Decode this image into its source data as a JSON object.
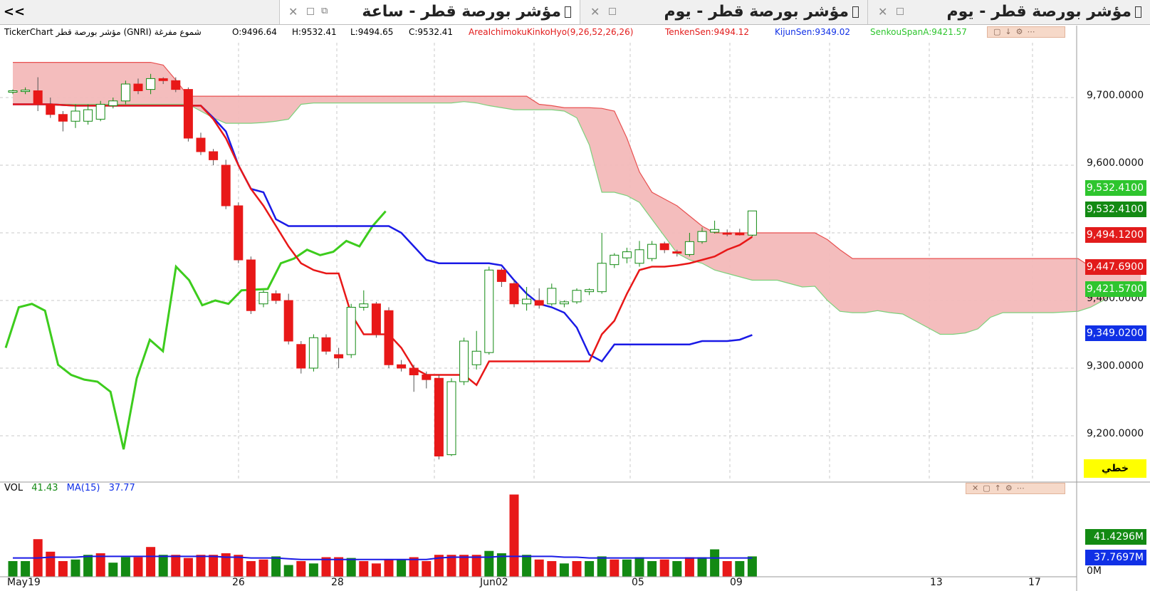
{
  "tabs": [
    {
      "title": "مؤشر بورصة قطر - ساعة",
      "active": true
    },
    {
      "title": "مؤشر بورصة قطر - يوم",
      "active": false
    },
    {
      "title": "مؤشر بورصة قطر - يوم",
      "active": false
    }
  ],
  "nav_label": "<<",
  "info": {
    "symbol": "TickerChart مؤشر بورصة قطر (GNRI)  شموع مفرغة",
    "open": "O:9496.64",
    "high": "H:9532.41",
    "low": "L:9494.65",
    "close": "C:9532.41",
    "indicator": "AreaIchimokuKinkoHyo(9,26,52,26,26)",
    "tenkan": "TenkenSen:9494.12",
    "kijun": "KijunSen:9349.02",
    "senkou": "SenkouSpanA:9421.57"
  },
  "price_axis": [
    "9,700.0000",
    "9,600.0000",
    "9,400.0000",
    "9,300.0000",
    "9,200.0000"
  ],
  "price_tags": [
    {
      "text": "9,532.4100",
      "color": "#2ec52e"
    },
    {
      "text": "9,532.4100",
      "color": "#138a13"
    },
    {
      "text": "9,494.1200",
      "color": "#e21b1b"
    },
    {
      "text": "9,447.6900",
      "color": "#e21b1b"
    },
    {
      "text": "9,421.5700",
      "color": "#2ec52e"
    },
    {
      "text": "9,349.0200",
      "color": "#1030e6"
    }
  ],
  "scale_button": "خطي",
  "date_labels": [
    "May19",
    "26",
    "28",
    "Jun02",
    "05",
    "09",
    "13",
    "17"
  ],
  "volume": {
    "label": "VOL",
    "value": "41.43",
    "ma_label": "MA(15)",
    "ma_value": "37.77",
    "tags": [
      {
        "text": "41.4296M",
        "color": "#138a13"
      },
      {
        "text": "37.7697M",
        "color": "#1030e6"
      }
    ],
    "zero_label": "0M"
  },
  "chart_data": {
    "type": "candlestick",
    "price_ylim": [
      9160,
      9760
    ],
    "candles": [
      {
        "o": 9708,
        "h": 9712,
        "l": 9705,
        "c": 9710
      },
      {
        "o": 9710,
        "h": 9715,
        "l": 9705,
        "c": 9711
      },
      {
        "o": 9710,
        "h": 9730,
        "l": 9680,
        "c": 9690
      },
      {
        "o": 9690,
        "h": 9700,
        "l": 9670,
        "c": 9675
      },
      {
        "o": 9675,
        "h": 9680,
        "l": 9650,
        "c": 9665
      },
      {
        "o": 9665,
        "h": 9690,
        "l": 9655,
        "c": 9680
      },
      {
        "o": 9665,
        "h": 9690,
        "l": 9660,
        "c": 9682
      },
      {
        "o": 9668,
        "h": 9695,
        "l": 9665,
        "c": 9690
      },
      {
        "o": 9688,
        "h": 9700,
        "l": 9684,
        "c": 9695
      },
      {
        "o": 9695,
        "h": 9725,
        "l": 9690,
        "c": 9720
      },
      {
        "o": 9720,
        "h": 9728,
        "l": 9705,
        "c": 9710
      },
      {
        "o": 9712,
        "h": 9735,
        "l": 9705,
        "c": 9728
      },
      {
        "o": 9728,
        "h": 9730,
        "l": 9720,
        "c": 9725
      },
      {
        "o": 9725,
        "h": 9730,
        "l": 9708,
        "c": 9712
      },
      {
        "o": 9712,
        "h": 9715,
        "l": 9635,
        "c": 9640
      },
      {
        "o": 9640,
        "h": 9648,
        "l": 9615,
        "c": 9620
      },
      {
        "o": 9620,
        "h": 9624,
        "l": 9600,
        "c": 9608
      },
      {
        "o": 9600,
        "h": 9608,
        "l": 9535,
        "c": 9540
      },
      {
        "o": 9540,
        "h": 9545,
        "l": 9455,
        "c": 9460
      },
      {
        "o": 9460,
        "h": 9465,
        "l": 9380,
        "c": 9385
      },
      {
        "o": 9395,
        "h": 9415,
        "l": 9390,
        "c": 9412
      },
      {
        "o": 9410,
        "h": 9415,
        "l": 9395,
        "c": 9400
      },
      {
        "o": 9400,
        "h": 9410,
        "l": 9335,
        "c": 9340
      },
      {
        "o": 9335,
        "h": 9340,
        "l": 9292,
        "c": 9300
      },
      {
        "o": 9300,
        "h": 9350,
        "l": 9295,
        "c": 9345
      },
      {
        "o": 9345,
        "h": 9350,
        "l": 9320,
        "c": 9325
      },
      {
        "o": 9320,
        "h": 9330,
        "l": 9300,
        "c": 9315
      },
      {
        "o": 9320,
        "h": 9395,
        "l": 9315,
        "c": 9390
      },
      {
        "o": 9390,
        "h": 9415,
        "l": 9385,
        "c": 9395
      },
      {
        "o": 9395,
        "h": 9398,
        "l": 9345,
        "c": 9350
      },
      {
        "o": 9385,
        "h": 9390,
        "l": 9300,
        "c": 9305
      },
      {
        "o": 9305,
        "h": 9312,
        "l": 9295,
        "c": 9300
      },
      {
        "o": 9300,
        "h": 9305,
        "l": 9265,
        "c": 9290
      },
      {
        "o": 9290,
        "h": 9295,
        "l": 9270,
        "c": 9283
      },
      {
        "o": 9285,
        "h": 9290,
        "l": 9165,
        "c": 9170
      },
      {
        "o": 9172,
        "h": 9285,
        "l": 9170,
        "c": 9280
      },
      {
        "o": 9280,
        "h": 9345,
        "l": 9275,
        "c": 9340
      },
      {
        "o": 9305,
        "h": 9355,
        "l": 9298,
        "c": 9325
      },
      {
        "o": 9323,
        "h": 9450,
        "l": 9320,
        "c": 9445
      },
      {
        "o": 9445,
        "h": 9448,
        "l": 9420,
        "c": 9428
      },
      {
        "o": 9425,
        "h": 9430,
        "l": 9390,
        "c": 9395
      },
      {
        "o": 9395,
        "h": 9420,
        "l": 9385,
        "c": 9402
      },
      {
        "o": 9400,
        "h": 9418,
        "l": 9388,
        "c": 9393
      },
      {
        "o": 9395,
        "h": 9425,
        "l": 9392,
        "c": 9418
      },
      {
        "o": 9395,
        "h": 9400,
        "l": 9390,
        "c": 9398
      },
      {
        "o": 9398,
        "h": 9418,
        "l": 9395,
        "c": 9415
      },
      {
        "o": 9413,
        "h": 9418,
        "l": 9408,
        "c": 9416
      },
      {
        "o": 9413,
        "h": 9500,
        "l": 9410,
        "c": 9455
      },
      {
        "o": 9453,
        "h": 9470,
        "l": 9448,
        "c": 9467
      },
      {
        "o": 9463,
        "h": 9478,
        "l": 9455,
        "c": 9472
      },
      {
        "o": 9455,
        "h": 9488,
        "l": 9450,
        "c": 9475
      },
      {
        "o": 9462,
        "h": 9488,
        "l": 9458,
        "c": 9483
      },
      {
        "o": 9484,
        "h": 9487,
        "l": 9470,
        "c": 9475
      },
      {
        "o": 9472,
        "h": 9475,
        "l": 9465,
        "c": 9470
      },
      {
        "o": 9468,
        "h": 9500,
        "l": 9465,
        "c": 9487
      },
      {
        "o": 9487,
        "h": 9508,
        "l": 9484,
        "c": 9502
      },
      {
        "o": 9501,
        "h": 9518,
        "l": 9499,
        "c": 9505
      },
      {
        "o": 9500,
        "h": 9505,
        "l": 9495,
        "c": 9499
      },
      {
        "o": 9500,
        "h": 9506,
        "l": 9496,
        "c": 9497
      },
      {
        "o": 9496.64,
        "h": 9532.41,
        "l": 9494.65,
        "c": 9532.41
      }
    ],
    "tenkan": [
      9690,
      9690,
      9690,
      9690,
      9689,
      9688,
      9688,
      9688,
      9688,
      9688,
      9688,
      9688,
      9688,
      9688,
      9688,
      9688,
      9668,
      9640,
      9600,
      9565,
      9540,
      9510,
      9480,
      9455,
      9445,
      9440,
      9440,
      9380,
      9350,
      9350,
      9350,
      9330,
      9300,
      9290,
      9290,
      9290,
      9290,
      9275,
      9310,
      9310,
      9310,
      9310,
      9310,
      9310,
      9310,
      9310,
      9310,
      9350,
      9370,
      9410,
      9445,
      9450,
      9450,
      9452,
      9455,
      9460,
      9465,
      9475,
      9482,
      9494.12
    ],
    "kijun": [
      9690,
      9690,
      9690,
      9690,
      9689,
      9688,
      9688,
      9688,
      9688,
      9688,
      9688,
      9688,
      9688,
      9688,
      9688,
      9688,
      9670,
      9650,
      9600,
      9565,
      9560,
      9520,
      9510,
      9510,
      9510,
      9510,
      9510,
      9510,
      9510,
      9510,
      9510,
      9500,
      9480,
      9460,
      9455,
      9455,
      9455,
      9455,
      9455,
      9452,
      9430,
      9410,
      9395,
      9390,
      9382,
      9360,
      9320,
      9310,
      9335,
      9335,
      9335,
      9335,
      9335,
      9335,
      9335,
      9340,
      9340,
      9340,
      9342,
      9349.02
    ],
    "chikou": [
      9330,
      9390,
      9395,
      9385,
      9305,
      9290,
      9283,
      9280,
      9265,
      9180,
      9285,
      9342,
      9325,
      9450,
      9430,
      9393,
      9400,
      9395,
      9415,
      9416,
      9417,
      9455,
      9462,
      9475,
      9467,
      9472,
      9488,
      9480,
      9510,
      9532
    ],
    "span_a": [
      9690,
      9690,
      9690,
      9690,
      9690,
      9690,
      9690,
      9690,
      9690,
      9690,
      9690,
      9690,
      9690,
      9690,
      9690,
      9680,
      9670,
      9662,
      9662,
      9662,
      9663,
      9665,
      9668,
      9690,
      9692,
      9692,
      9692,
      9692,
      9692,
      9692,
      9692,
      9692,
      9692,
      9692,
      9692,
      9692,
      9694,
      9692,
      9688,
      9685,
      9682,
      9682,
      9682,
      9682,
      9680,
      9670,
      9630,
      9560,
      9560,
      9555,
      9545,
      9520,
      9495,
      9470,
      9460,
      9455,
      9445,
      9440,
      9435,
      9430,
      9430,
      9430,
      9425,
      9420,
      9421,
      9400,
      9384,
      9382,
      9382,
      9385,
      9382,
      9380,
      9370,
      9360,
      9350,
      9350,
      9352,
      9358,
      9375,
      9382,
      9382,
      9382,
      9382,
      9382,
      9383,
      9384,
      9390,
      9400,
      9412,
      9415,
      9421.57
    ],
    "span_b": [
      9752,
      9752,
      9752,
      9752,
      9752,
      9752,
      9752,
      9752,
      9752,
      9752,
      9752,
      9752,
      9748,
      9726,
      9702,
      9702,
      9702,
      9702,
      9702,
      9702,
      9702,
      9702,
      9702,
      9702,
      9702,
      9702,
      9702,
      9702,
      9702,
      9702,
      9702,
      9702,
      9702,
      9702,
      9702,
      9702,
      9702,
      9702,
      9702,
      9702,
      9702,
      9702,
      9690,
      9688,
      9685,
      9685,
      9685,
      9684,
      9680,
      9640,
      9590,
      9560,
      9550,
      9540,
      9525,
      9510,
      9500,
      9500,
      9500,
      9500,
      9500,
      9500,
      9500,
      9500,
      9500,
      9490,
      9475,
      9462,
      9462,
      9462,
      9462,
      9462,
      9462,
      9462,
      9462,
      9462,
      9462,
      9462,
      9462,
      9462,
      9462,
      9462,
      9462,
      9462,
      9462,
      9462,
      9450,
      9450,
      9450,
      9448,
      9447.69
    ],
    "volume_ylim": [
      0,
      100
    ],
    "volume": [
      {
        "v": 20,
        "up": true
      },
      {
        "v": 20,
        "up": true
      },
      {
        "v": 48,
        "up": false
      },
      {
        "v": 32,
        "up": false
      },
      {
        "v": 20,
        "up": false
      },
      {
        "v": 22,
        "up": true
      },
      {
        "v": 28,
        "up": true
      },
      {
        "v": 30,
        "up": false
      },
      {
        "v": 18,
        "up": true
      },
      {
        "v": 25,
        "up": true
      },
      {
        "v": 25,
        "up": false
      },
      {
        "v": 38,
        "up": false
      },
      {
        "v": 28,
        "up": true
      },
      {
        "v": 28,
        "up": false
      },
      {
        "v": 24,
        "up": false
      },
      {
        "v": 28,
        "up": false
      },
      {
        "v": 28,
        "up": false
      },
      {
        "v": 30,
        "up": false
      },
      {
        "v": 28,
        "up": false
      },
      {
        "v": 20,
        "up": false
      },
      {
        "v": 22,
        "up": false
      },
      {
        "v": 26,
        "up": true
      },
      {
        "v": 15,
        "up": true
      },
      {
        "v": 20,
        "up": false
      },
      {
        "v": 17,
        "up": true
      },
      {
        "v": 25,
        "up": false
      },
      {
        "v": 25,
        "up": false
      },
      {
        "v": 24,
        "up": true
      },
      {
        "v": 20,
        "up": false
      },
      {
        "v": 17,
        "up": false
      },
      {
        "v": 22,
        "up": false
      },
      {
        "v": 22,
        "up": true
      },
      {
        "v": 25,
        "up": false
      },
      {
        "v": 20,
        "up": false
      },
      {
        "v": 28,
        "up": false
      },
      {
        "v": 28,
        "up": false
      },
      {
        "v": 28,
        "up": false
      },
      {
        "v": 28,
        "up": false
      },
      {
        "v": 33,
        "up": true
      },
      {
        "v": 30,
        "up": true
      },
      {
        "v": 105,
        "up": false
      },
      {
        "v": 28,
        "up": true
      },
      {
        "v": 22,
        "up": false
      },
      {
        "v": 20,
        "up": false
      },
      {
        "v": 17,
        "up": true
      },
      {
        "v": 20,
        "up": false
      },
      {
        "v": 20,
        "up": true
      },
      {
        "v": 26,
        "up": true
      },
      {
        "v": 22,
        "up": false
      },
      {
        "v": 22,
        "up": true
      },
      {
        "v": 25,
        "up": true
      },
      {
        "v": 20,
        "up": true
      },
      {
        "v": 22,
        "up": false
      },
      {
        "v": 20,
        "up": true
      },
      {
        "v": 25,
        "up": false
      },
      {
        "v": 25,
        "up": true
      },
      {
        "v": 35,
        "up": true
      },
      {
        "v": 20,
        "up": false
      },
      {
        "v": 20,
        "up": true
      },
      {
        "v": 26,
        "up": true
      }
    ],
    "volume_ma": [
      24,
      24,
      24,
      25,
      25,
      25,
      26,
      26,
      26,
      26,
      26,
      26,
      26,
      26,
      26,
      26,
      26,
      25,
      25,
      24,
      24,
      24,
      23,
      22,
      22,
      22,
      22,
      22,
      22,
      22,
      22,
      22,
      22,
      22,
      24,
      25,
      25,
      25,
      25,
      26,
      26,
      26,
      26,
      26,
      25,
      25,
      24,
      24,
      24,
      24,
      24,
      24,
      24,
      24,
      24,
      24,
      24,
      24,
      24,
      24
    ]
  }
}
